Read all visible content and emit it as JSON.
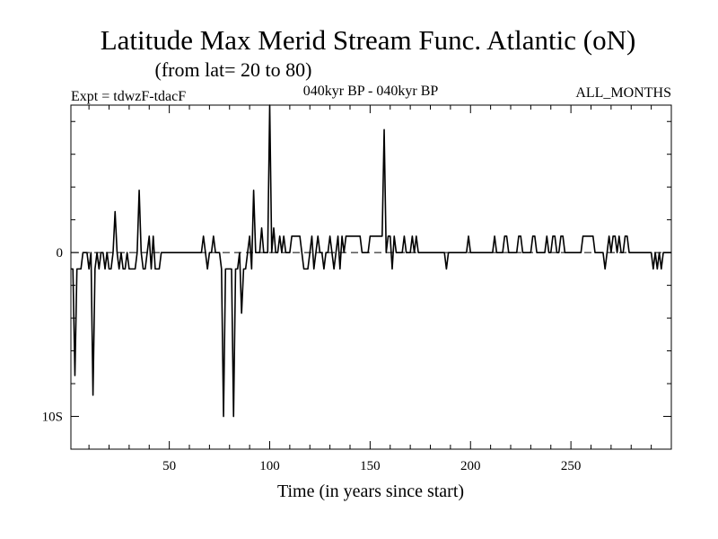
{
  "chart_data": {
    "type": "line",
    "title": "Latitude Max Merid Stream Func. Atlantic (oN)",
    "subtitle": "(from lat= 20 to 80)",
    "expt_label": "Expt = tdwzF-tdacF",
    "period_label": "040kyr BP - 040kyr BP",
    "months_label": "ALL_MONTHS",
    "xlabel": "Time (in years since start)",
    "ylabel": "",
    "xlim": [
      1,
      300
    ],
    "ylim": [
      -12,
      9
    ],
    "x_ticks": [
      50,
      100,
      150,
      200,
      250
    ],
    "x_tick_labels": [
      "50",
      "100",
      "150",
      "200",
      "250"
    ],
    "y_ticks": [
      0,
      -10
    ],
    "y_tick_labels": [
      "0",
      "10S"
    ],
    "zero_line": "dashed",
    "series": [
      {
        "name": "tdwzF-tdacF",
        "color": "#000000",
        "points": [
          [
            1,
            -1
          ],
          [
            2,
            -1
          ],
          [
            3,
            -7.5
          ],
          [
            4,
            -1
          ],
          [
            5,
            -1
          ],
          [
            6,
            -1
          ],
          [
            7,
            0
          ],
          [
            8,
            0
          ],
          [
            9,
            0
          ],
          [
            10,
            -1
          ],
          [
            11,
            0
          ],
          [
            12,
            -8.7
          ],
          [
            13,
            -1
          ],
          [
            14,
            0
          ],
          [
            15,
            -1
          ],
          [
            16,
            0
          ],
          [
            17,
            0
          ],
          [
            18,
            -1
          ],
          [
            19,
            0
          ],
          [
            20,
            -1
          ],
          [
            21,
            -1
          ],
          [
            22,
            0
          ],
          [
            23,
            2.5
          ],
          [
            24,
            0
          ],
          [
            25,
            -1
          ],
          [
            26,
            0
          ],
          [
            27,
            -1
          ],
          [
            28,
            -1
          ],
          [
            29,
            0
          ],
          [
            30,
            -1
          ],
          [
            31,
            -1
          ],
          [
            32,
            -1
          ],
          [
            33,
            -1
          ],
          [
            34,
            0
          ],
          [
            35,
            3.8
          ],
          [
            36,
            0
          ],
          [
            37,
            -1
          ],
          [
            38,
            -1
          ],
          [
            39,
            0
          ],
          [
            40,
            1
          ],
          [
            41,
            -1
          ],
          [
            42,
            1
          ],
          [
            43,
            -1
          ],
          [
            44,
            -1
          ],
          [
            45,
            -1
          ],
          [
            46,
            0
          ],
          [
            47,
            0
          ],
          [
            48,
            0
          ],
          [
            49,
            0
          ],
          [
            50,
            0
          ],
          [
            51,
            0
          ],
          [
            52,
            0
          ],
          [
            53,
            0
          ],
          [
            54,
            0
          ],
          [
            55,
            0
          ],
          [
            56,
            0
          ],
          [
            57,
            0
          ],
          [
            58,
            0
          ],
          [
            59,
            0
          ],
          [
            60,
            0
          ],
          [
            61,
            0
          ],
          [
            62,
            0
          ],
          [
            63,
            0
          ],
          [
            64,
            0
          ],
          [
            65,
            0
          ],
          [
            66,
            0
          ],
          [
            67,
            1
          ],
          [
            68,
            0
          ],
          [
            69,
            -1
          ],
          [
            70,
            0
          ],
          [
            71,
            0
          ],
          [
            72,
            1
          ],
          [
            73,
            0
          ],
          [
            74,
            0
          ],
          [
            75,
            0
          ],
          [
            76,
            -1
          ],
          [
            77,
            -10
          ],
          [
            78,
            -1
          ],
          [
            79,
            -1
          ],
          [
            80,
            -1
          ],
          [
            81,
            -1
          ],
          [
            82,
            -10
          ],
          [
            83,
            -1
          ],
          [
            84,
            -1
          ],
          [
            85,
            0
          ],
          [
            86,
            -3.7
          ],
          [
            87,
            -1
          ],
          [
            88,
            -1
          ],
          [
            89,
            0
          ],
          [
            90,
            1
          ],
          [
            91,
            -1
          ],
          [
            92,
            3.8
          ],
          [
            93,
            0
          ],
          [
            94,
            0
          ],
          [
            95,
            0
          ],
          [
            96,
            1.5
          ],
          [
            97,
            0
          ],
          [
            98,
            0
          ],
          [
            99,
            0
          ],
          [
            100,
            9
          ],
          [
            101,
            0
          ],
          [
            102,
            1.5
          ],
          [
            103,
            0
          ],
          [
            104,
            0
          ],
          [
            105,
            1
          ],
          [
            106,
            0
          ],
          [
            107,
            1
          ],
          [
            108,
            0
          ],
          [
            109,
            0
          ],
          [
            110,
            0
          ],
          [
            111,
            1
          ],
          [
            112,
            1
          ],
          [
            113,
            1
          ],
          [
            114,
            1
          ],
          [
            115,
            1
          ],
          [
            116,
            0
          ],
          [
            117,
            -1
          ],
          [
            118,
            -1
          ],
          [
            119,
            -1
          ],
          [
            120,
            0
          ],
          [
            121,
            1
          ],
          [
            122,
            -1
          ],
          [
            123,
            0
          ],
          [
            124,
            1
          ],
          [
            125,
            0
          ],
          [
            126,
            0
          ],
          [
            127,
            -1
          ],
          [
            128,
            0
          ],
          [
            129,
            0
          ],
          [
            130,
            1
          ],
          [
            131,
            0
          ],
          [
            132,
            -1
          ],
          [
            133,
            0
          ],
          [
            134,
            1
          ],
          [
            135,
            -1
          ],
          [
            136,
            1
          ],
          [
            137,
            0
          ],
          [
            138,
            1
          ],
          [
            139,
            1
          ],
          [
            140,
            1
          ],
          [
            141,
            1
          ],
          [
            142,
            1
          ],
          [
            143,
            1
          ],
          [
            144,
            1
          ],
          [
            145,
            1
          ],
          [
            146,
            0
          ],
          [
            147,
            0
          ],
          [
            148,
            0
          ],
          [
            149,
            0
          ],
          [
            150,
            1
          ],
          [
            151,
            1
          ],
          [
            152,
            1
          ],
          [
            153,
            1
          ],
          [
            154,
            1
          ],
          [
            155,
            1
          ],
          [
            156,
            1
          ],
          [
            157,
            7.5
          ],
          [
            158,
            0
          ],
          [
            159,
            1
          ],
          [
            160,
            1
          ],
          [
            161,
            -1
          ],
          [
            162,
            1
          ],
          [
            163,
            0
          ],
          [
            164,
            0
          ],
          [
            165,
            0
          ],
          [
            166,
            0
          ],
          [
            167,
            1
          ],
          [
            168,
            0
          ],
          [
            169,
            0
          ],
          [
            170,
            0
          ],
          [
            171,
            1
          ],
          [
            172,
            0
          ],
          [
            173,
            1
          ],
          [
            174,
            0
          ],
          [
            175,
            0
          ],
          [
            176,
            0
          ],
          [
            177,
            0
          ],
          [
            178,
            0
          ],
          [
            179,
            0
          ],
          [
            180,
            0
          ],
          [
            181,
            0
          ],
          [
            182,
            0
          ],
          [
            183,
            0
          ],
          [
            184,
            0
          ],
          [
            185,
            0
          ],
          [
            186,
            0
          ],
          [
            187,
            0
          ],
          [
            188,
            -1
          ],
          [
            189,
            0
          ],
          [
            190,
            0
          ],
          [
            191,
            0
          ],
          [
            192,
            0
          ],
          [
            193,
            0
          ],
          [
            194,
            0
          ],
          [
            195,
            0
          ],
          [
            196,
            0
          ],
          [
            197,
            0
          ],
          [
            198,
            0
          ],
          [
            199,
            1
          ],
          [
            200,
            0
          ],
          [
            201,
            0
          ],
          [
            202,
            0
          ],
          [
            203,
            0
          ],
          [
            204,
            0
          ],
          [
            205,
            0
          ],
          [
            206,
            0
          ],
          [
            207,
            0
          ],
          [
            208,
            0
          ],
          [
            209,
            0
          ],
          [
            210,
            0
          ],
          [
            211,
            0
          ],
          [
            212,
            1
          ],
          [
            213,
            0
          ],
          [
            214,
            0
          ],
          [
            215,
            0
          ],
          [
            216,
            0
          ],
          [
            217,
            1
          ],
          [
            218,
            1
          ],
          [
            219,
            0
          ],
          [
            220,
            0
          ],
          [
            221,
            0
          ],
          [
            222,
            0
          ],
          [
            223,
            0
          ],
          [
            224,
            1
          ],
          [
            225,
            1
          ],
          [
            226,
            0
          ],
          [
            227,
            0
          ],
          [
            228,
            0
          ],
          [
            229,
            0
          ],
          [
            230,
            0
          ],
          [
            231,
            1
          ],
          [
            232,
            1
          ],
          [
            233,
            0
          ],
          [
            234,
            0
          ],
          [
            235,
            0
          ],
          [
            236,
            0
          ],
          [
            237,
            0
          ],
          [
            238,
            1
          ],
          [
            239,
            0
          ],
          [
            240,
            0
          ],
          [
            241,
            1
          ],
          [
            242,
            1
          ],
          [
            243,
            0
          ],
          [
            244,
            0
          ],
          [
            245,
            1
          ],
          [
            246,
            1
          ],
          [
            247,
            0
          ],
          [
            248,
            0
          ],
          [
            249,
            0
          ],
          [
            250,
            0
          ],
          [
            251,
            0
          ],
          [
            252,
            0
          ],
          [
            253,
            0
          ],
          [
            254,
            0
          ],
          [
            255,
            0
          ],
          [
            256,
            1
          ],
          [
            257,
            1
          ],
          [
            258,
            1
          ],
          [
            259,
            1
          ],
          [
            260,
            1
          ],
          [
            261,
            1
          ],
          [
            262,
            0
          ],
          [
            263,
            0
          ],
          [
            264,
            0
          ],
          [
            265,
            0
          ],
          [
            266,
            0
          ],
          [
            267,
            -1
          ],
          [
            268,
            0
          ],
          [
            269,
            1
          ],
          [
            270,
            0
          ],
          [
            271,
            1
          ],
          [
            272,
            1
          ],
          [
            273,
            0
          ],
          [
            274,
            1
          ],
          [
            275,
            0
          ],
          [
            276,
            0
          ],
          [
            277,
            1
          ],
          [
            278,
            1
          ],
          [
            279,
            0
          ],
          [
            280,
            0
          ],
          [
            281,
            0
          ],
          [
            282,
            0
          ],
          [
            283,
            0
          ],
          [
            284,
            0
          ],
          [
            285,
            0
          ],
          [
            286,
            0
          ],
          [
            287,
            0
          ],
          [
            288,
            0
          ],
          [
            289,
            0
          ],
          [
            290,
            0
          ],
          [
            291,
            -1
          ],
          [
            292,
            0
          ],
          [
            293,
            -1
          ],
          [
            294,
            0
          ],
          [
            295,
            -1
          ],
          [
            296,
            0
          ],
          [
            297,
            0
          ],
          [
            298,
            0
          ],
          [
            299,
            0
          ],
          [
            300,
            0
          ]
        ]
      }
    ]
  }
}
